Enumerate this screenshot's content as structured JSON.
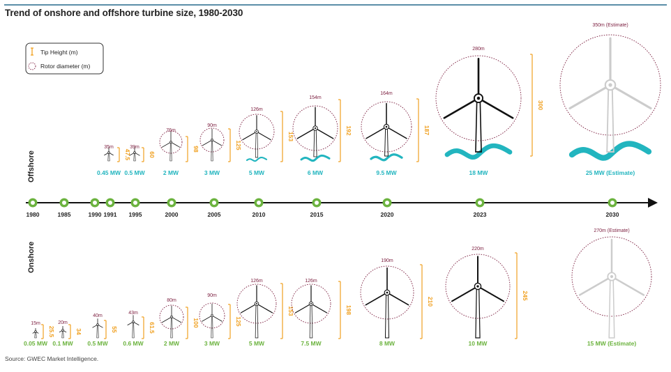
{
  "title": "Trend of onshore and offshore turbine size, 1980-2030",
  "source": "Source: GWEC Market Intelligence.",
  "legend": {
    "tip_height": "Tip Height (m)",
    "rotor_diameter": "Rotor diameter (m)"
  },
  "sections": {
    "offshore": "Offshore",
    "onshore": "Onshore"
  },
  "colors": {
    "tip_bar": "#f0a020",
    "rotor_label": "#7b1d3e",
    "offshore_capacity": "#22b5bf",
    "onshore_capacity": "#6cb33f",
    "timeline_node": "#6cb33f",
    "turbine": "#111111",
    "estimate_turbine": "#cccccc",
    "wave": "#22b5bf"
  },
  "timeline_years": [
    "1980",
    "1985",
    "1990",
    "1991",
    "1995",
    "2000",
    "2005",
    "2010",
    "2015",
    "2020",
    "2023",
    "2030"
  ],
  "offshore": [
    {
      "rotor": "35m",
      "tip": "47.5",
      "capacity": "0.45 MW",
      "estimate": false
    },
    {
      "rotor": "39m",
      "tip": "60",
      "capacity": "0.5 MW",
      "estimate": false
    },
    {
      "rotor": "76m",
      "tip": "98",
      "capacity": "2 MW",
      "estimate": false
    },
    {
      "rotor": "90m",
      "tip": "125",
      "capacity": "3 MW",
      "estimate": false
    },
    {
      "rotor": "126m",
      "tip": "153",
      "capacity": "5 MW",
      "estimate": false
    },
    {
      "rotor": "154m",
      "tip": "192",
      "capacity": "6 MW",
      "estimate": false
    },
    {
      "rotor": "164m",
      "tip": "187",
      "capacity": "9.5 MW",
      "estimate": false
    },
    {
      "rotor": "280m",
      "tip": "300",
      "capacity": "18 MW",
      "estimate": false
    },
    {
      "rotor": "350m (Estimate)",
      "tip": "",
      "capacity": "25 MW (Estimate)",
      "estimate": true
    }
  ],
  "onshore": [
    {
      "rotor": "15m",
      "tip": "25.5",
      "capacity": "0.05 MW",
      "estimate": false
    },
    {
      "rotor": "20m",
      "tip": "34",
      "capacity": "0.1 MW",
      "estimate": false
    },
    {
      "rotor": "40m",
      "tip": "55",
      "capacity": "0.5 MW",
      "estimate": false
    },
    {
      "rotor": "43m",
      "tip": "61.5",
      "capacity": "0.6 MW",
      "estimate": false
    },
    {
      "rotor": "80m",
      "tip": "100",
      "capacity": "2 MW",
      "estimate": false
    },
    {
      "rotor": "90m",
      "tip": "125",
      "capacity": "3 MW",
      "estimate": false
    },
    {
      "rotor": "126m",
      "tip": "153",
      "capacity": "5 MW",
      "estimate": false
    },
    {
      "rotor": "126m",
      "tip": "198",
      "capacity": "7.5 MW",
      "estimate": false
    },
    {
      "rotor": "190m",
      "tip": "210",
      "capacity": "8 MW",
      "estimate": false
    },
    {
      "rotor": "220m",
      "tip": "245",
      "capacity": "10 MW",
      "estimate": false
    },
    {
      "rotor": "270m (Estimate)",
      "tip": "",
      "capacity": "15 MW (Estimate)",
      "estimate": true
    }
  ]
}
